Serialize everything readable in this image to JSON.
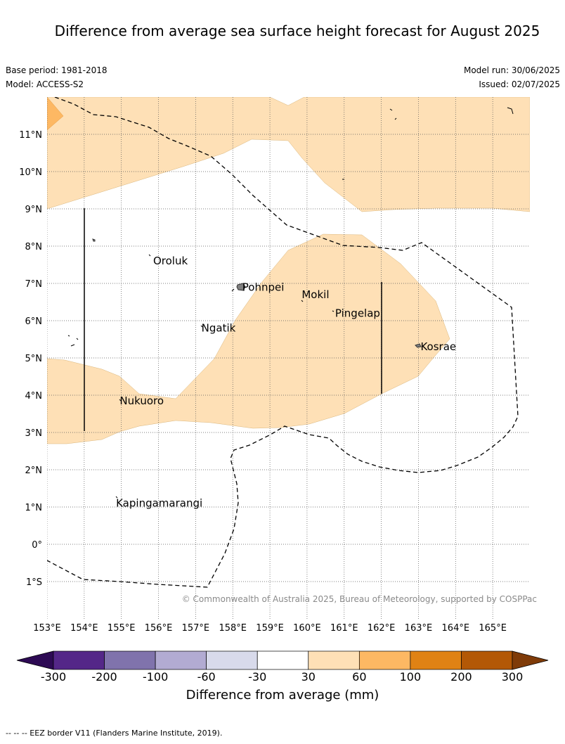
{
  "title": "Difference from average sea surface height forecast for August 2025",
  "base_period": "Base period: 1981-2018",
  "model": "Model: ACCESS-S2",
  "model_run": "Model run: 30/06/2025",
  "issued": "Issued: 02/07/2025",
  "credit": "© Commonwealth of Australia 2025, Bureau of Meteorology, supported by COSPPac",
  "footer": "--  --  -- EEZ border V11 (Flanders Marine Institute, 2019).",
  "map": {
    "lon_range": [
      153,
      166
    ],
    "lat_range": [
      -2,
      12
    ],
    "lat_labels": [
      "11°N",
      "10°N",
      "9°N",
      "8°N",
      "7°N",
      "6°N",
      "5°N",
      "4°N",
      "3°N",
      "2°N",
      "1°N",
      "0°",
      "1°S"
    ],
    "lat_values": [
      11,
      10,
      9,
      8,
      7,
      6,
      5,
      4,
      3,
      2,
      1,
      0,
      -1
    ],
    "lon_labels": [
      "153°E",
      "154°E",
      "155°E",
      "156°E",
      "157°E",
      "158°E",
      "159°E",
      "160°E",
      "161°E",
      "162°E",
      "163°E",
      "164°E",
      "165°E"
    ],
    "lon_values": [
      153,
      154,
      155,
      156,
      157,
      158,
      159,
      160,
      161,
      162,
      163,
      164,
      165
    ],
    "places": [
      {
        "name": "Oroluk",
        "lon": 155.8,
        "lat": 7.6
      },
      {
        "name": "Pohnpei",
        "lon": 158.2,
        "lat": 6.9
      },
      {
        "name": "Mokil",
        "lon": 159.8,
        "lat": 6.7
      },
      {
        "name": "Pingelap",
        "lon": 160.7,
        "lat": 6.2
      },
      {
        "name": "Ngatik",
        "lon": 157.1,
        "lat": 5.8
      },
      {
        "name": "Kosrae",
        "lon": 163.0,
        "lat": 5.3
      },
      {
        "name": "Nukuoro",
        "lon": 154.9,
        "lat": 3.85
      },
      {
        "name": "Kapingamarangi",
        "lon": 154.8,
        "lat": 1.1
      }
    ]
  },
  "colorbar": {
    "label": "Difference from average (mm)",
    "tick_labels": [
      "-300",
      "-200",
      "-100",
      "-60",
      "-30",
      "30",
      "60",
      "100",
      "200",
      "300"
    ],
    "colors": [
      "#2d0a54",
      "#542788",
      "#8073ac",
      "#b2abd2",
      "#d8daeb",
      "#ffffff",
      "#fee0b6",
      "#fdb863",
      "#e08214",
      "#b35806",
      "#7f3b08"
    ]
  }
}
